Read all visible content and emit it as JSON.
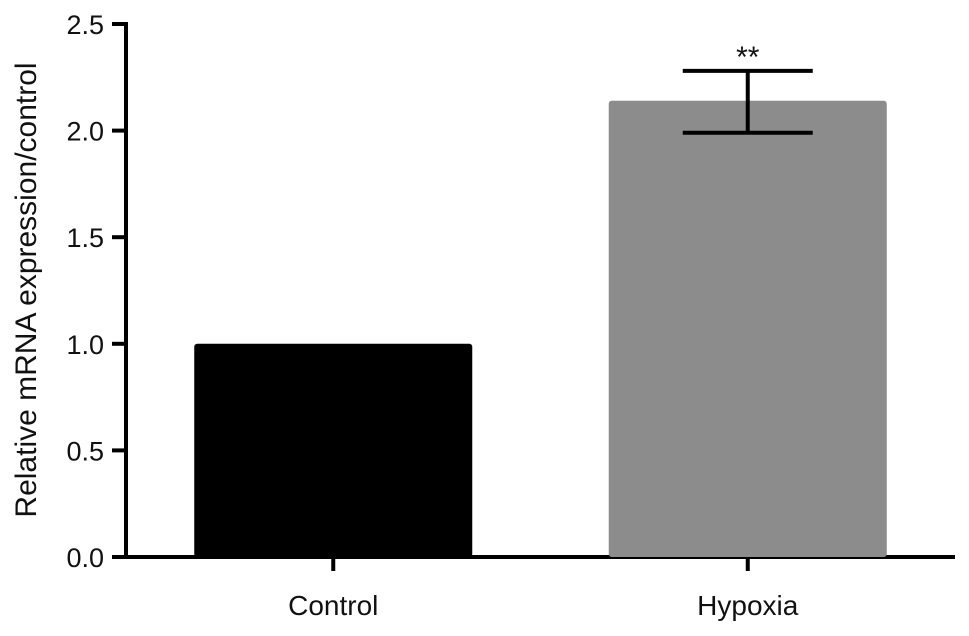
{
  "chart_data": {
    "type": "bar",
    "title": "",
    "xlabel": "",
    "ylabel": "Relative mRNA expression/control",
    "ylim": [
      0,
      2.5
    ],
    "yticks": [
      "0.0",
      "0.5",
      "1.0",
      "1.5",
      "2.0",
      "2.5"
    ],
    "categories": [
      "Control",
      "Hypoxia"
    ],
    "values": [
      1.0,
      2.14
    ],
    "error_upper": [
      1.0,
      2.28
    ],
    "error_lower": [
      1.0,
      1.99
    ],
    "bar_colors": [
      "#000000",
      "#8c8c8c"
    ],
    "annotations": [
      "",
      "**"
    ],
    "grid": false,
    "legend": "none"
  }
}
